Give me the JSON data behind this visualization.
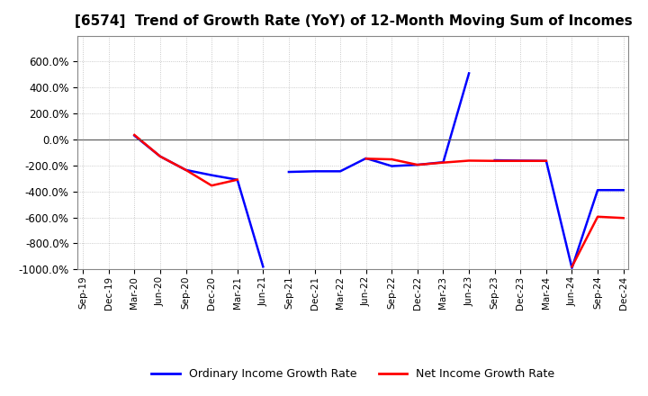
{
  "title": "[6574]  Trend of Growth Rate (YoY) of 12-Month Moving Sum of Incomes",
  "title_fontsize": 11,
  "background_color": "#ffffff",
  "grid_color": "#aaaaaa",
  "line_color_ordinary": "#0000ff",
  "line_color_net": "#ff0000",
  "legend_ordinary": "Ordinary Income Growth Rate",
  "legend_net": "Net Income Growth Rate",
  "ylim": [
    -1000,
    800
  ],
  "yticks": [
    -1000,
    -800,
    -600,
    -400,
    -200,
    0,
    200,
    400,
    600
  ],
  "x_tick_labels": [
    "Sep-19",
    "Dec-19",
    "Mar-20",
    "Jun-20",
    "Sep-20",
    "Dec-20",
    "Mar-21",
    "Jun-21",
    "Sep-21",
    "Dec-21",
    "Mar-22",
    "Jun-22",
    "Sep-22",
    "Dec-22",
    "Mar-23",
    "Jun-23",
    "Sep-23",
    "Dec-23",
    "Mar-24",
    "Jun-24",
    "Sep-24",
    "Dec-24"
  ],
  "ordinary_segments": [
    {
      "dates": [
        "Mar-20",
        "Jun-20",
        "Sep-20",
        "Dec-20",
        "Mar-21",
        "Jun-21"
      ],
      "values": [
        30,
        -130,
        -235,
        -275,
        -310,
        -980
      ]
    },
    {
      "dates": [
        "Sep-21",
        "Dec-21",
        "Mar-22",
        "Jun-22",
        "Sep-22",
        "Dec-22",
        "Mar-23",
        "Jun-23"
      ],
      "values": [
        -250,
        -245,
        -245,
        -145,
        -205,
        -195,
        -175,
        510
      ]
    },
    {
      "dates": [
        "Sep-23",
        "Dec-23",
        "Mar-24",
        "Jun-24",
        "Sep-24",
        "Dec-24"
      ],
      "values": [
        -160,
        -163,
        -165,
        -990,
        -390,
        -390
      ]
    }
  ],
  "net_segments": [
    {
      "dates": [
        "Mar-20",
        "Jun-20",
        "Sep-20",
        "Dec-20",
        "Mar-21"
      ],
      "values": [
        35,
        -130,
        -235,
        -355,
        -310
      ]
    },
    {
      "dates": [
        "Jun-22",
        "Sep-22",
        "Dec-22",
        "Mar-23",
        "Jun-23",
        "Sep-23",
        "Dec-23",
        "Mar-24"
      ],
      "values": [
        -148,
        -153,
        -195,
        -178,
        -163,
        -165,
        -165,
        -165
      ]
    },
    {
      "dates": [
        "Jun-24",
        "Sep-24",
        "Dec-24"
      ],
      "values": [
        -980,
        -595,
        -605
      ]
    }
  ]
}
